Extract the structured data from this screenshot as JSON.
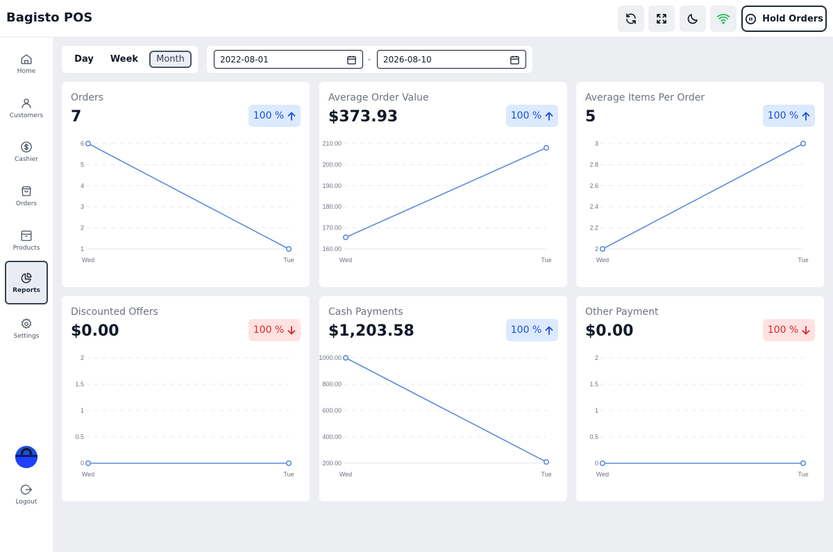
{
  "app": {
    "title": "Bagisto POS"
  },
  "topbar": {
    "hold_orders_label": "Hold Orders"
  },
  "sidebar": {
    "items": [
      {
        "label": "Home",
        "icon": "home-icon"
      },
      {
        "label": "Customers",
        "icon": "user-icon"
      },
      {
        "label": "Cashier",
        "icon": "dollar-circle-icon"
      },
      {
        "label": "Orders",
        "icon": "shopping-bag-icon"
      },
      {
        "label": "Products",
        "icon": "archive-box-icon"
      },
      {
        "label": "Reports",
        "icon": "pie-chart-icon",
        "active": true
      },
      {
        "label": "Settings",
        "icon": "gear-icon"
      }
    ],
    "logout_label": "Logout"
  },
  "filters": {
    "periods": [
      "Day",
      "Week",
      "Month"
    ],
    "active_period": "Month",
    "date_from": "2022-08-01",
    "date_to": "2026-08-10",
    "separator": "-"
  },
  "colors": {
    "line": "#5b8bd8",
    "up": "#1d4ed8",
    "down": "#dc2626"
  },
  "cards": [
    {
      "title": "Orders",
      "value": "7",
      "badge": "100 %",
      "trend": "up",
      "chart_data": {
        "type": "line",
        "x": [
          "Wed",
          "Tue"
        ],
        "values": [
          6,
          1
        ],
        "ylim": [
          1,
          6
        ],
        "yticks": [
          "1",
          "2",
          "3",
          "4",
          "5",
          "6"
        ]
      }
    },
    {
      "title": "Average Order Value",
      "value": "$373.93",
      "badge": "100 %",
      "trend": "up",
      "chart_data": {
        "type": "line",
        "x": [
          "Wed",
          "Tue"
        ],
        "values": [
          165.5,
          208.0
        ],
        "ylim": [
          160,
          210
        ],
        "yticks": [
          "160.00",
          "170.00",
          "180.00",
          "190.00",
          "200.00",
          "210.00"
        ]
      }
    },
    {
      "title": "Average Items Per Order",
      "value": "5",
      "badge": "100 %",
      "trend": "up",
      "chart_data": {
        "type": "line",
        "x": [
          "Wed",
          "Tue"
        ],
        "values": [
          2,
          3
        ],
        "ylim": [
          2,
          3
        ],
        "yticks": [
          "2",
          "2.2",
          "2.4",
          "2.6",
          "2.8",
          "3"
        ]
      }
    },
    {
      "title": "Discounted Offers",
      "value": "$0.00",
      "badge": "100 %",
      "trend": "down",
      "chart_data": {
        "type": "line",
        "x": [
          "Wed",
          "Tue"
        ],
        "values": [
          0,
          0
        ],
        "ylim": [
          0,
          2
        ],
        "yticks": [
          "0",
          "0.5",
          "1",
          "1.5",
          "2"
        ]
      }
    },
    {
      "title": "Cash Payments",
      "value": "$1,203.58",
      "badge": "100 %",
      "trend": "up",
      "chart_data": {
        "type": "line",
        "x": [
          "Wed",
          "Tue"
        ],
        "values": [
          1000,
          210
        ],
        "ylim": [
          200,
          1000
        ],
        "yticks": [
          "200.00",
          "400.00",
          "600.00",
          "800.00",
          "1000.00"
        ]
      }
    },
    {
      "title": "Other Payment",
      "value": "$0.00",
      "badge": "100 %",
      "trend": "down",
      "chart_data": {
        "type": "line",
        "x": [
          "Wed",
          "Tue"
        ],
        "values": [
          0,
          0
        ],
        "ylim": [
          0,
          2
        ],
        "yticks": [
          "0",
          "0.5",
          "1",
          "1.5",
          "2"
        ]
      }
    }
  ]
}
